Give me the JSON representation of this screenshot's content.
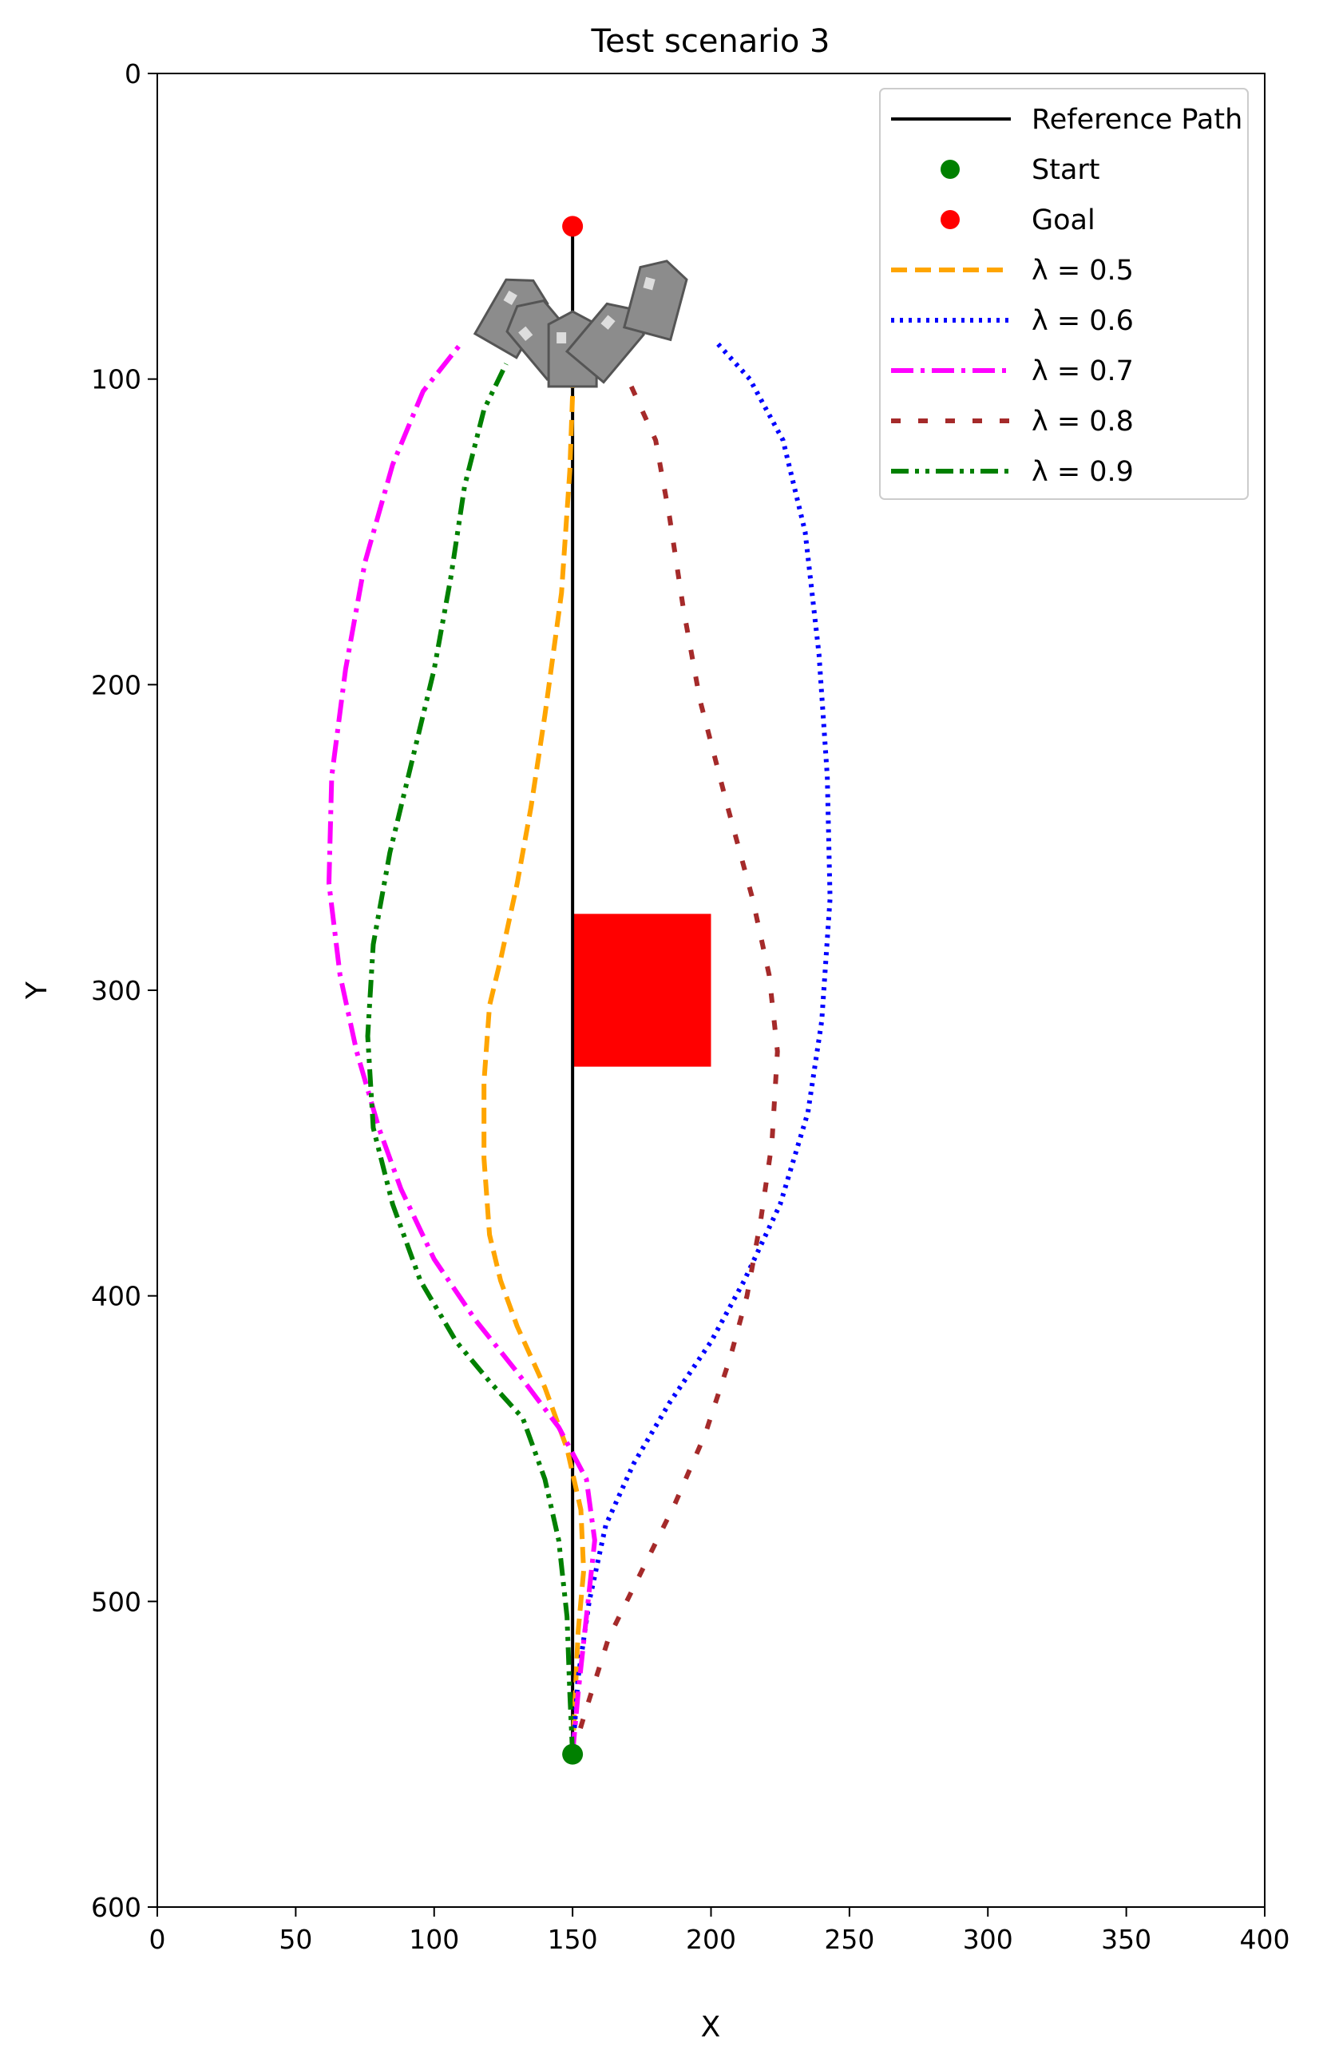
{
  "chart_data": {
    "type": "line",
    "title": "Test scenario 3",
    "xlabel": "X",
    "ylabel": "Y",
    "xlim": [
      0,
      400
    ],
    "ylim": [
      600,
      0
    ],
    "y_inverted": true,
    "grid": false,
    "legend_placement": "top-right",
    "x_ticks": [
      0,
      50,
      100,
      150,
      200,
      250,
      300,
      350,
      400
    ],
    "y_ticks": [
      0,
      100,
      200,
      300,
      400,
      500,
      600
    ],
    "reference_path": {
      "name": "Reference Path",
      "color": "#000000",
      "points": [
        [
          150,
          550
        ],
        [
          150,
          50
        ]
      ]
    },
    "start": {
      "name": "Start",
      "color": "#008000",
      "x": 150,
      "y": 550
    },
    "goal": {
      "name": "Goal",
      "color": "#ff0000",
      "x": 150,
      "y": 50
    },
    "obstacle": {
      "x": [
        150,
        200
      ],
      "y": [
        275,
        325
      ],
      "color": "#ff0000"
    },
    "series": [
      {
        "name": "λ = 0.5",
        "color": "#ffa500",
        "dash": "20,10",
        "points": [
          [
            150,
            550
          ],
          [
            151,
            530
          ],
          [
            152,
            510
          ],
          [
            154,
            490
          ],
          [
            153,
            470
          ],
          [
            148,
            450
          ],
          [
            140,
            430
          ],
          [
            130,
            410
          ],
          [
            124,
            395
          ],
          [
            120,
            380
          ],
          [
            118,
            355
          ],
          [
            118,
            330
          ],
          [
            120,
            305
          ],
          [
            124,
            290
          ],
          [
            130,
            265
          ],
          [
            135,
            240
          ],
          [
            140,
            210
          ],
          [
            146,
            170
          ],
          [
            149,
            130
          ],
          [
            150,
            105
          ],
          [
            150,
            100
          ]
        ]
      },
      {
        "name": "λ = 0.6",
        "color": "#0000ff",
        "dash": "4,7",
        "points": [
          [
            150,
            550
          ],
          [
            152,
            525
          ],
          [
            156,
            500
          ],
          [
            162,
            475
          ],
          [
            172,
            455
          ],
          [
            185,
            435
          ],
          [
            200,
            415
          ],
          [
            212,
            395
          ],
          [
            225,
            370
          ],
          [
            235,
            340
          ],
          [
            240,
            310
          ],
          [
            243,
            270
          ],
          [
            242,
            230
          ],
          [
            239,
            190
          ],
          [
            234,
            150
          ],
          [
            226,
            120
          ],
          [
            214,
            100
          ],
          [
            202,
            88
          ]
        ]
      },
      {
        "name": "λ = 0.7",
        "color": "#ff00ff",
        "dash": "28,9,5,9",
        "points": [
          [
            150,
            550
          ],
          [
            152,
            530
          ],
          [
            155,
            505
          ],
          [
            158,
            480
          ],
          [
            155,
            460
          ],
          [
            145,
            443
          ],
          [
            130,
            425
          ],
          [
            115,
            408
          ],
          [
            100,
            388
          ],
          [
            88,
            365
          ],
          [
            80,
            345
          ],
          [
            72,
            320
          ],
          [
            66,
            295
          ],
          [
            62,
            265
          ],
          [
            63,
            230
          ],
          [
            68,
            195
          ],
          [
            75,
            160
          ],
          [
            85,
            128
          ],
          [
            96,
            104
          ],
          [
            110,
            88
          ]
        ]
      },
      {
        "name": "λ = 0.8",
        "color": "#a52a2a",
        "dash": "12,22",
        "points": [
          [
            150,
            550
          ],
          [
            155,
            535
          ],
          [
            163,
            512
          ],
          [
            175,
            490
          ],
          [
            187,
            468
          ],
          [
            198,
            445
          ],
          [
            207,
            420
          ],
          [
            213,
            400
          ],
          [
            218,
            375
          ],
          [
            222,
            350
          ],
          [
            224,
            320
          ],
          [
            221,
            295
          ],
          [
            215,
            270
          ],
          [
            206,
            240
          ],
          [
            196,
            205
          ],
          [
            190,
            175
          ],
          [
            185,
            145
          ],
          [
            180,
            120
          ],
          [
            170,
            100
          ]
        ]
      },
      {
        "name": "λ = 0.9",
        "color": "#008000",
        "dash": "22,8,5,8,5,8",
        "points": [
          [
            150,
            550
          ],
          [
            149,
            530
          ],
          [
            148,
            505
          ],
          [
            145,
            480
          ],
          [
            140,
            460
          ],
          [
            132,
            440
          ],
          [
            120,
            428
          ],
          [
            108,
            415
          ],
          [
            95,
            395
          ],
          [
            85,
            370
          ],
          [
            78,
            345
          ],
          [
            76,
            315
          ],
          [
            78,
            285
          ],
          [
            84,
            255
          ],
          [
            92,
            225
          ],
          [
            100,
            195
          ],
          [
            106,
            165
          ],
          [
            111,
            135
          ],
          [
            118,
            110
          ],
          [
            126,
            95
          ]
        ]
      }
    ],
    "vehicles": [
      {
        "x": 128,
        "y": 80,
        "angle": 30
      },
      {
        "x": 140,
        "y": 87,
        "angle": -40
      },
      {
        "x": 150,
        "y": 92,
        "angle": 0
      },
      {
        "x": 162,
        "y": 88,
        "angle": 40
      },
      {
        "x": 180,
        "y": 75,
        "angle": 15
      }
    ]
  }
}
